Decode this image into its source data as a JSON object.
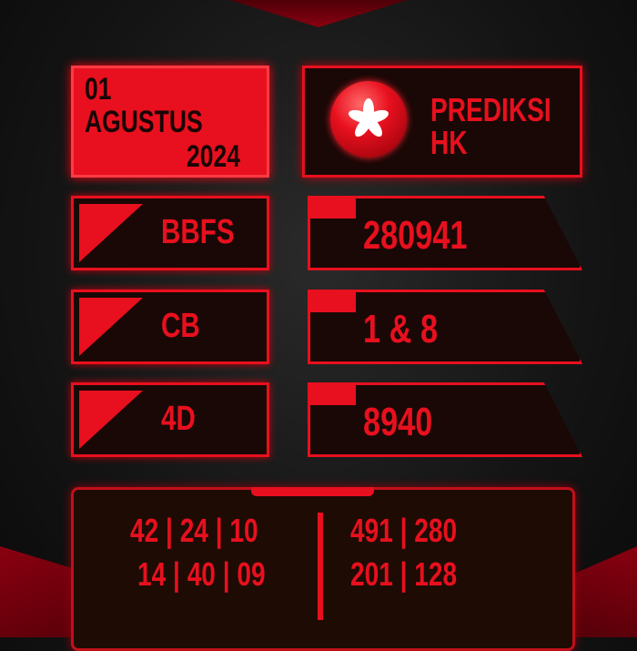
{
  "date": {
    "day": "01",
    "month": "AGUSTUS",
    "year": "2024"
  },
  "header": {
    "title_line1": "PREDIKSI",
    "title_line2": "HK",
    "flag_icon": "hong-kong-bauhinia"
  },
  "rows": [
    {
      "label": "BBFS",
      "value": "280941"
    },
    {
      "label": "CB",
      "value": "1 & 8"
    },
    {
      "label": "4D",
      "value": "8940"
    }
  ],
  "bottom": {
    "left": [
      "42 | 24 | 10",
      "14 | 40 | 09"
    ],
    "right": [
      "491 | 280",
      "201 | 128"
    ]
  },
  "colors": {
    "accent": "#e8101e",
    "panel": "#1a0806"
  }
}
